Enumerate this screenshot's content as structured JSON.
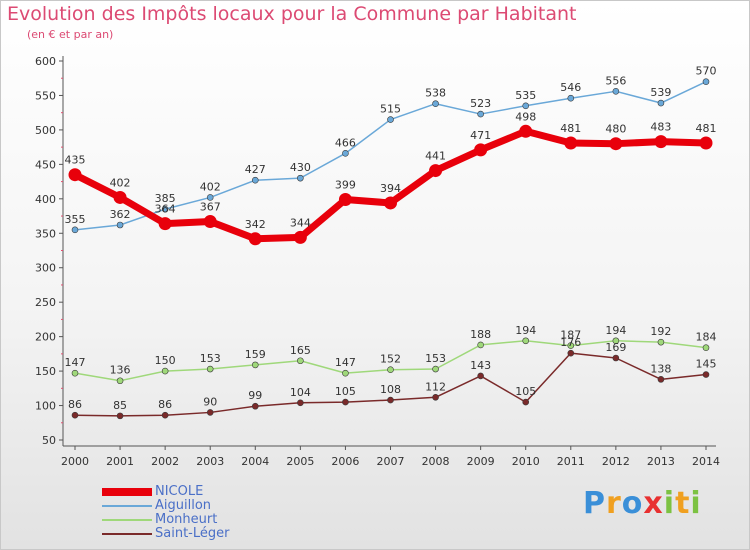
{
  "header": {
    "title": "Evolution des Impôts locaux pour la Commune par Habitant",
    "subtitle": "(en € et par an)"
  },
  "logo": {
    "text": "Proxiti"
  },
  "chart_data": {
    "type": "line",
    "x": [
      "2000",
      "2001",
      "2002",
      "2003",
      "2004",
      "2005",
      "2006",
      "2007",
      "2008",
      "2009",
      "2010",
      "2011",
      "2012",
      "2013",
      "2014"
    ],
    "ylim": [
      50,
      600
    ],
    "yticks": [
      50,
      100,
      150,
      200,
      250,
      300,
      350,
      400,
      450,
      500,
      550,
      600
    ],
    "grid": false,
    "legend_position": "bottom-left",
    "series": [
      {
        "name": "NICOLE",
        "color": "#e8000b",
        "values": [
          435,
          402,
          364,
          367,
          342,
          344,
          399,
          394,
          441,
          471,
          498,
          481,
          480,
          483,
          481
        ]
      },
      {
        "name": "Aiguillon",
        "color": "#6aa8d8",
        "values": [
          355,
          362,
          385,
          402,
          427,
          430,
          466,
          515,
          538,
          523,
          535,
          546,
          556,
          539,
          570
        ]
      },
      {
        "name": "Monheurt",
        "color": "#9fd87a",
        "values": [
          147,
          136,
          150,
          153,
          159,
          165,
          147,
          152,
          153,
          188,
          194,
          187,
          194,
          192,
          184
        ]
      },
      {
        "name": "Saint-Léger",
        "color": "#7a2a2a",
        "values": [
          86,
          85,
          86,
          90,
          99,
          104,
          105,
          108,
          112,
          143,
          105,
          176,
          169,
          138,
          145
        ]
      }
    ]
  }
}
